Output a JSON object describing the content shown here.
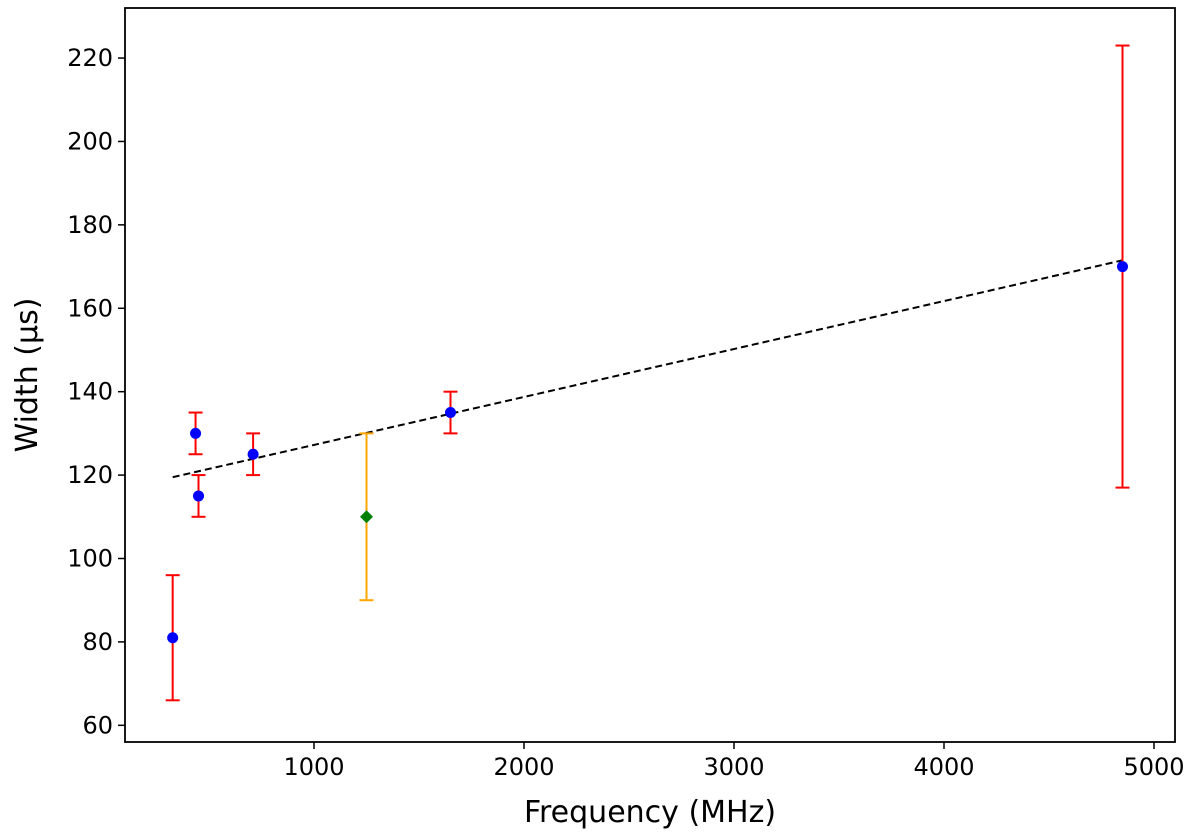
{
  "chart_data": {
    "type": "scatter",
    "xlabel": "Frequency (MHz)",
    "ylabel": "Width (μs)",
    "xlim": [
      100,
      5100
    ],
    "ylim": [
      56,
      232
    ],
    "xticks": [
      1000,
      2000,
      3000,
      4000,
      5000
    ],
    "yticks": [
      60,
      80,
      100,
      120,
      140,
      160,
      180,
      200,
      220
    ],
    "grid": false,
    "series": [
      {
        "marker": "circle",
        "color": "#0000ff",
        "errorbar_color": "#ff0000",
        "points": [
          {
            "x": 327,
            "y": 81,
            "yerr_low": 15,
            "yerr_high": 15
          },
          {
            "x": 436,
            "y": 130,
            "yerr_low": 5,
            "yerr_high": 5
          },
          {
            "x": 450,
            "y": 115,
            "yerr_low": 5,
            "yerr_high": 5
          },
          {
            "x": 710,
            "y": 125,
            "yerr_low": 5,
            "yerr_high": 5
          },
          {
            "x": 1650,
            "y": 135,
            "yerr_low": 5,
            "yerr_high": 5
          },
          {
            "x": 4850,
            "y": 170,
            "yerr_low": 53,
            "yerr_high": 53
          }
        ]
      },
      {
        "marker": "diamond",
        "color": "#008000",
        "errorbar_color": "#ffa500",
        "points": [
          {
            "x": 1250,
            "y": 110,
            "yerr_low": 20,
            "yerr_high": 20
          }
        ]
      }
    ],
    "fit_line": {
      "style": "dashed",
      "color": "#000000",
      "x": [
        327,
        4850
      ],
      "y": [
        119.5,
        171.5
      ]
    }
  }
}
